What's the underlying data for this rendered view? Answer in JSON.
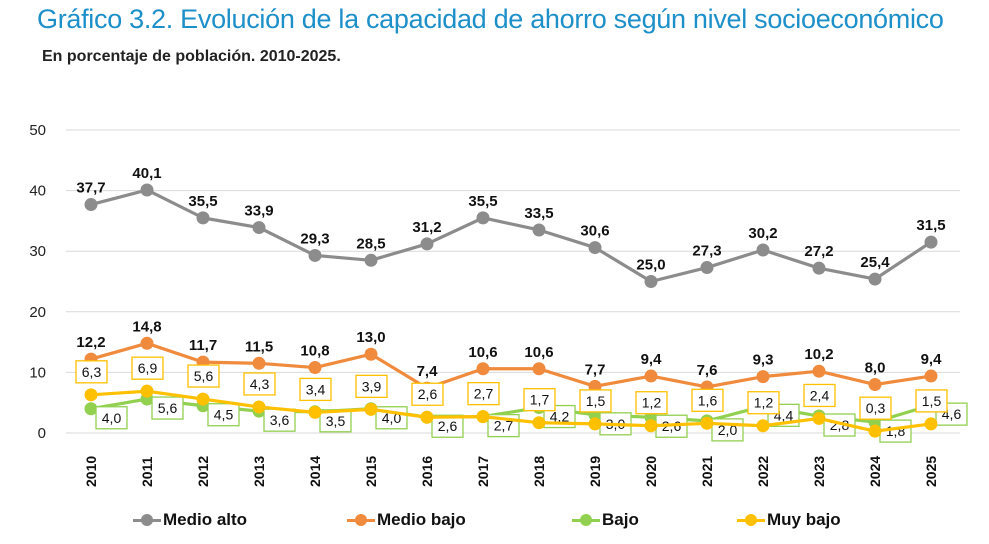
{
  "title": "Gráfico 3.2. Evolución de la capacidad de ahorro según nivel socioeconómico",
  "subtitle": "En porcentaje de población. 2010-2025.",
  "chart_data": {
    "type": "line",
    "title": "Gráfico 3.2. Evolución de la capacidad de ahorro según nivel socioeconómico",
    "subtitle": "En porcentaje de población. 2010-2025.",
    "xlabel": "",
    "ylabel": "",
    "ylim": [
      0,
      50
    ],
    "yticks": [
      "0",
      "10",
      "20",
      "30",
      "40",
      "50"
    ],
    "ytick_values": [
      0,
      10,
      20,
      30,
      40,
      50
    ],
    "grid": true,
    "legend_position": "bottom",
    "categories": [
      "2010",
      "2011",
      "2012",
      "2013",
      "2014",
      "2015",
      "2016",
      "2017",
      "2018",
      "2019",
      "2020",
      "2021",
      "2022",
      "2023",
      "2024",
      "2025"
    ],
    "series": [
      {
        "name": "Medio alto",
        "color": "#8c8c8c",
        "label_style": "plain-above",
        "values": [
          37.7,
          40.1,
          35.5,
          33.9,
          29.3,
          28.5,
          31.2,
          35.5,
          33.5,
          30.6,
          25.0,
          27.3,
          30.2,
          27.2,
          25.4,
          31.5
        ],
        "labels": [
          "37,7",
          "40,1",
          "35,5",
          "33,9",
          "29,3",
          "28,5",
          "31,2",
          "35,5",
          "33,5",
          "30,6",
          "25,0",
          "27,3",
          "30,2",
          "27,2",
          "25,4",
          "31,5"
        ]
      },
      {
        "name": "Medio bajo",
        "color": "#f08a3c",
        "label_style": "plain-above",
        "values": [
          12.2,
          14.8,
          11.7,
          11.5,
          10.8,
          13.0,
          7.4,
          10.6,
          10.6,
          7.7,
          9.4,
          7.6,
          9.3,
          10.2,
          8.0,
          9.4
        ],
        "labels": [
          "12,2",
          "14,8",
          "11,7",
          "11,5",
          "10,8",
          "13,0",
          "7,4",
          "10,6",
          "10,6",
          "7,7",
          "9,4",
          "7,6",
          "9,3",
          "10,2",
          "8,0",
          "9,4"
        ]
      },
      {
        "name": "Bajo",
        "color": "#92d050",
        "label_style": "box-right",
        "values": [
          4.0,
          5.6,
          4.5,
          3.6,
          3.5,
          4.0,
          2.6,
          2.7,
          4.2,
          3.0,
          2.6,
          2.0,
          4.4,
          2.8,
          1.8,
          4.6
        ],
        "labels": [
          "4,0",
          "5,6",
          "4,5",
          "3,6",
          "3,5",
          "4,0",
          "2,6",
          "2,7",
          "4,2",
          "3,0",
          "2,6",
          "2,0",
          "4,4",
          "2,8",
          "1,8",
          "4,6"
        ]
      },
      {
        "name": "Muy bajo",
        "color": "#ffc000",
        "label_style": "box-above",
        "values": [
          6.3,
          6.9,
          5.6,
          4.3,
          3.4,
          3.9,
          2.6,
          2.7,
          1.7,
          1.5,
          1.2,
          1.6,
          1.2,
          2.4,
          0.3,
          1.5
        ],
        "labels": [
          "6,3",
          "6,9",
          "5,6",
          "4,3",
          "3,4",
          "3,9",
          "2,6",
          "2,7",
          "1,7",
          "1,5",
          "1,2",
          "1,6",
          "1,2",
          "2,4",
          "0,3",
          "1,5"
        ]
      }
    ]
  }
}
